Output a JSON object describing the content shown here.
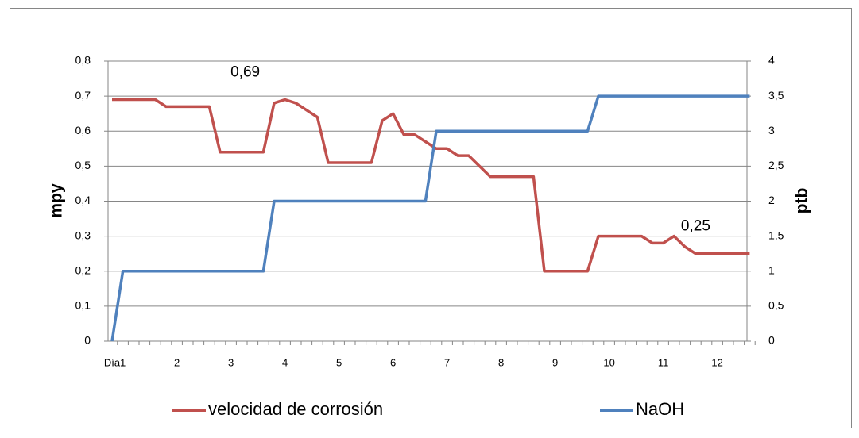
{
  "chart_data": {
    "type": "line",
    "categories": [
      "Día",
      "1",
      null,
      null,
      null,
      null,
      "2",
      null,
      null,
      null,
      null,
      "3",
      null,
      null,
      null,
      null,
      "4",
      null,
      null,
      null,
      null,
      "5",
      null,
      null,
      null,
      null,
      "6",
      null,
      null,
      null,
      null,
      "7",
      null,
      null,
      null,
      null,
      "8",
      null,
      null,
      null,
      null,
      "9",
      null,
      null,
      null,
      null,
      "10",
      null,
      null,
      null,
      null,
      "11",
      null,
      null,
      null,
      null,
      "12",
      null,
      null,
      null
    ],
    "series": [
      {
        "name": "velocidad de corrosión",
        "color": "#c0504d",
        "values": [
          0.69,
          0.69,
          0.69,
          0.69,
          0.69,
          0.67,
          0.67,
          0.67,
          0.67,
          0.67,
          0.54,
          0.54,
          0.54,
          0.54,
          0.54,
          0.68,
          0.69,
          0.68,
          0.66,
          0.64,
          0.51,
          0.51,
          0.51,
          0.51,
          0.51,
          0.63,
          0.65,
          0.59,
          0.59,
          0.57,
          0.55,
          0.55,
          0.53,
          0.53,
          0.5,
          0.47,
          0.47,
          0.47,
          0.47,
          0.47,
          0.2,
          0.2,
          0.2,
          0.2,
          0.2,
          0.3,
          0.3,
          0.3,
          0.3,
          0.3,
          0.28,
          0.28,
          0.3,
          0.27,
          0.25,
          0.25,
          0.25,
          0.25,
          0.25,
          0.25
        ],
        "value_labels": [
          null,
          null,
          null,
          null,
          null,
          null,
          null,
          null,
          null,
          null,
          null,
          null,
          null,
          null,
          null,
          null,
          "0,69",
          null,
          null,
          null,
          null,
          null,
          null,
          null,
          null,
          null,
          null,
          null,
          null,
          null,
          null,
          null,
          null,
          null,
          null,
          null,
          null,
          null,
          null,
          null,
          null,
          null,
          null,
          null,
          null,
          null,
          null,
          null,
          null,
          null,
          null,
          null,
          null,
          null,
          "0,25",
          null,
          null,
          null,
          null,
          null
        ]
      },
      {
        "name": "NaOH",
        "color": "#4f81bd",
        "axis": "y2",
        "values": [
          0,
          1,
          1,
          1,
          1,
          1,
          1,
          1,
          1,
          1,
          1,
          1,
          1,
          1,
          1,
          2,
          2,
          2,
          2,
          2,
          2,
          2,
          2,
          2,
          2,
          2,
          2,
          2,
          2,
          2,
          3,
          3,
          3,
          3,
          3,
          3,
          3,
          3,
          3,
          3,
          3,
          3,
          3,
          3,
          3,
          3.5,
          3.5,
          3.5,
          3.5,
          3.5,
          3.5,
          3.5,
          3.5,
          3.5,
          3.5,
          3.5,
          3.5,
          3.5,
          3.5,
          3.5
        ]
      }
    ],
    "ylabel": "mpy",
    "y2label": "ptb",
    "ylim": [
      0,
      0.8
    ],
    "yticks": [
      0,
      {
        "value": 0.1,
        "label": "0,1"
      },
      {
        "value": 0.2,
        "label": "0,2"
      },
      {
        "value": 0.3,
        "label": "0,3"
      },
      {
        "value": 0.4,
        "label": "0,4"
      },
      {
        "value": 0.5,
        "label": "0,5"
      },
      {
        "value": 0.6,
        "label": "0,6"
      },
      {
        "value": 0.7,
        "label": "0,7"
      },
      {
        "value": 0.8,
        "label": "0,8"
      }
    ],
    "y2lim": [
      0,
      4
    ],
    "y2ticks": [
      0,
      {
        "value": 0.5,
        "label": "0,5"
      },
      1,
      {
        "value": 1.5,
        "label": "1,5"
      },
      2,
      {
        "value": 2.5,
        "label": "2,5"
      },
      3,
      {
        "value": 3.5,
        "label": "3,5"
      },
      4
    ],
    "grid": true,
    "legend": "bottom"
  }
}
